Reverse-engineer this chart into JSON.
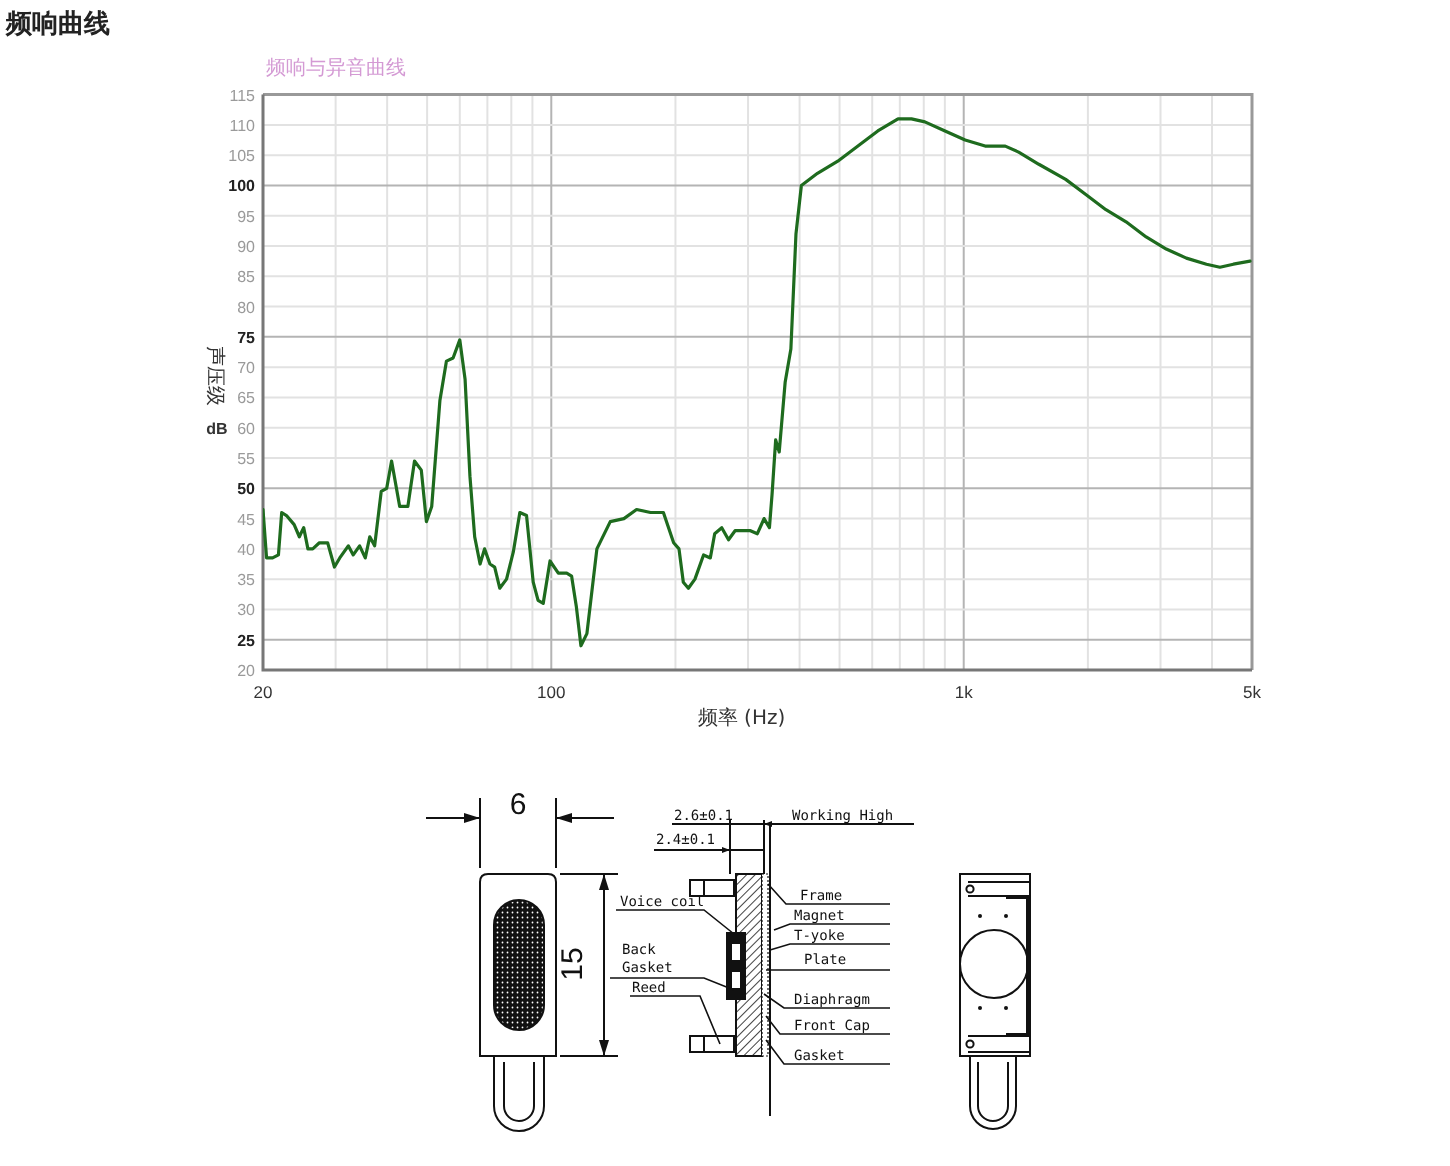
{
  "chart_data": {
    "type": "line",
    "title": "频响曲线",
    "subtitle": "频响与异音曲线",
    "xlabel": "频率 (Hz)",
    "ylabel": "声压级",
    "annotations": [
      "dB",
      "6",
      "15",
      "2.6±0.1",
      "2.4±0.1",
      "Working High",
      "Voice coil",
      "Back Gasket",
      "Reed",
      "Frame",
      "Magnet",
      "T-yoke",
      "Plate",
      "Diaphragm",
      "Front Cap",
      "Gasket"
    ],
    "log": "x",
    "grid": true,
    "color": "#1e6b1e",
    "xlim": [
      20,
      5000
    ],
    "ylim": [
      20,
      115
    ],
    "xticks": [
      20,
      {
        "value": 30,
        "label": null
      },
      {
        "value": 40,
        "label": null
      },
      {
        "value": 50,
        "label": null
      },
      {
        "value": 60,
        "label": null
      },
      {
        "value": 70,
        "label": null
      },
      {
        "value": 80,
        "label": null
      },
      {
        "value": 90,
        "label": null
      },
      100,
      {
        "value": 200,
        "label": null
      },
      {
        "value": 300,
        "label": null
      },
      {
        "value": 400,
        "label": null
      },
      {
        "value": 500,
        "label": null
      },
      {
        "value": 600,
        "label": null
      },
      {
        "value": 700,
        "label": null
      },
      {
        "value": 800,
        "label": null
      },
      {
        "value": 900,
        "label": null
      },
      {
        "value": 1000,
        "label": "1k"
      },
      {
        "value": 2000,
        "label": null
      },
      {
        "value": 3000,
        "label": null
      },
      {
        "value": 4000,
        "label": null
      },
      {
        "value": 5000,
        "label": "5k"
      }
    ],
    "yticks": [
      20,
      25,
      30,
      35,
      40,
      45,
      50,
      55,
      60,
      65,
      70,
      75,
      80,
      85,
      90,
      95,
      100,
      105,
      110,
      115
    ],
    "x": [
      20,
      20.4,
      21.1,
      21.8,
      22.2,
      22.8,
      23.8,
      24.5,
      25.1,
      25.7,
      26.4,
      27.4,
      28.7,
      29.8,
      30.7,
      32.2,
      33.1,
      34.3,
      35.4,
      36.3,
      37.3,
      38.7,
      39.9,
      41,
      42.9,
      44.9,
      46.6,
      48.4,
      49.8,
      51.3,
      53.7,
      55.7,
      57.8,
      60,
      61.8,
      63.5,
      65.2,
      67.2,
      68.9,
      71,
      72.9,
      75,
      77.9,
      80.9,
      83.9,
      87.1,
      90.4,
      92.9,
      95.6,
      99.3,
      104,
      109,
      112,
      115,
      118,
      122,
      129,
      139,
      150,
      161,
      174,
      187,
      198,
      204,
      209,
      215,
      223,
      234,
      243,
      249,
      259,
      269,
      279,
      293,
      304,
      316,
      328,
      338,
      343,
      350,
      357,
      369,
      381,
      392,
      404,
      442,
      495,
      554,
      619,
      693,
      747,
      805,
      901,
      1008,
      1127,
      1261,
      1359,
      1521,
      1767,
      1977,
      2212,
      2475,
      2769,
      3098,
      3466,
      3878,
      4180,
      4506,
      4946
    ],
    "values": [
      46.5,
      38.5,
      38.5,
      39,
      46,
      45.5,
      44,
      42,
      43.5,
      40,
      40,
      41,
      41,
      37,
      38.5,
      40.5,
      39,
      40.5,
      38.5,
      42,
      40.5,
      49.5,
      50,
      54.5,
      47,
      47,
      54.5,
      53,
      44.5,
      47,
      64.5,
      71,
      71.5,
      74.5,
      68,
      52,
      42,
      37.5,
      40,
      37.5,
      37,
      33.5,
      35,
      39.5,
      46,
      45.5,
      34.5,
      31.5,
      31,
      38,
      36,
      36,
      35.5,
      30.5,
      24,
      26,
      40,
      44.5,
      45,
      46.5,
      46,
      46,
      41,
      40,
      34.5,
      33.5,
      35,
      39,
      38.5,
      42.5,
      43.5,
      41.5,
      43,
      43,
      43,
      42.5,
      45,
      43.5,
      49,
      58,
      56,
      67.5,
      73,
      92,
      100,
      102,
      104,
      106.5,
      109,
      111,
      111,
      110.5,
      109,
      107.5,
      106.5,
      106.5,
      105.5,
      103.5,
      101,
      98.5,
      96,
      94,
      91.5,
      89.5,
      88,
      87,
      86.5,
      87,
      87.5
    ]
  }
}
